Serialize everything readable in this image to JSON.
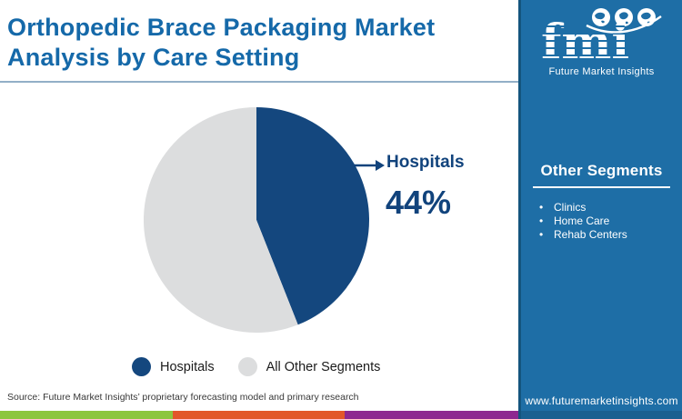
{
  "title": {
    "line1": "Orthopedic Brace Packaging Market",
    "line2": "Analysis by Care Setting",
    "full": "Orthopedic Brace Packaging Market Analysis by Care Setting"
  },
  "logo": {
    "text": "fmi",
    "tagline": "Future Market Insights"
  },
  "sidebar": {
    "heading": "Other Segments",
    "items": [
      "Clinics",
      "Home Care",
      "Rehab Centers"
    ],
    "website": "www.futuremarketinsights.com"
  },
  "chart_data": {
    "type": "pie",
    "title": "Orthopedic Brace Packaging Market Analysis by Care Setting",
    "start_angle_deg": 0,
    "direction": "clockwise",
    "slices": [
      {
        "label": "Hospitals",
        "value": 44,
        "color": "#14477E"
      },
      {
        "label": "All Other Segments",
        "value": 56,
        "color": "#DCDDDE"
      }
    ],
    "annotation": {
      "label": "Hospitals",
      "value_text": "44%"
    },
    "legend_position": "bottom"
  },
  "legend": [
    {
      "label": "Hospitals",
      "color": "#14477E"
    },
    {
      "label": "All Other Segments",
      "color": "#DCDDDE"
    }
  ],
  "source": "Source: Future Market Insights’ proprietary forecasting model and primary research",
  "footer_strip_colors": [
    "#8DC63F",
    "#E2572B",
    "#8E2890"
  ],
  "colors": {
    "title_blue": "#1569A9",
    "sidebar_bg": "#1E6EA6",
    "sidebar_edge": "#14557E",
    "divider": "#92AFC7",
    "annotation_navy": "#11437C",
    "legend_text": "#1B1B1B",
    "source_text": "#383838"
  }
}
